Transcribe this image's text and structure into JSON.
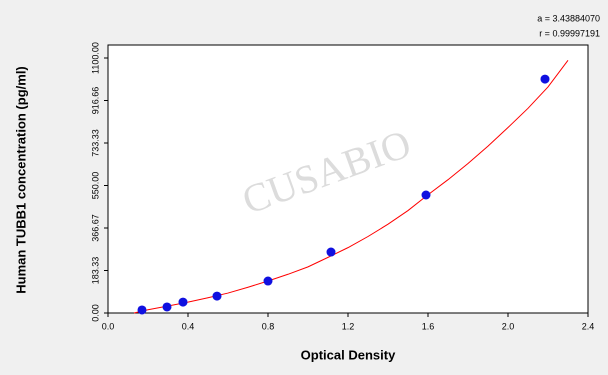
{
  "chart_data": {
    "type": "scatter",
    "x_label": "Optical Density",
    "y_label": "Human TUBB1 concentration (pg/ml)",
    "annotations": [
      "a = 3.43884070",
      "r = 0.99997191"
    ],
    "watermark": "CUSABIO",
    "xlim": [
      0,
      2.4
    ],
    "ylim": [
      0,
      1100
    ],
    "xticks": [
      {
        "value": 0,
        "label": "0.0"
      },
      0.4,
      0.8,
      1.2,
      1.6,
      {
        "value": 2,
        "label": "2.0"
      },
      2.4
    ],
    "yticks": [
      {
        "value": 0,
        "label": "0.00"
      },
      183.33,
      366.67,
      {
        "value": 550,
        "label": "550.00"
      },
      733.33,
      916.66,
      {
        "value": 1100,
        "label": "1100.00"
      }
    ],
    "series": [
      {
        "mode": "markers",
        "color": "#1010e0",
        "x": [
          0.17,
          0.295,
          0.375,
          0.545,
          0.8,
          1.115,
          1.59,
          2.185
        ],
        "values": [
          13,
          26,
          47,
          73,
          138,
          263,
          509,
          1009
        ]
      },
      {
        "mode": "line",
        "color": "#ff0000",
        "x": [
          0.13,
          0.2,
          0.3,
          0.4,
          0.5,
          0.6,
          0.7,
          0.8,
          0.9,
          1.0,
          1.1,
          1.2,
          1.3,
          1.4,
          1.5,
          1.6,
          1.7,
          1.8,
          1.9,
          2.0,
          2.1,
          2.2,
          2.3
        ],
        "values": [
          0,
          14,
          30,
          47,
          66,
          86,
          111,
          138,
          167,
          199,
          240,
          282,
          330,
          383,
          442,
          510,
          575,
          645,
          720,
          800,
          883,
          975,
          1090
        ]
      }
    ]
  }
}
